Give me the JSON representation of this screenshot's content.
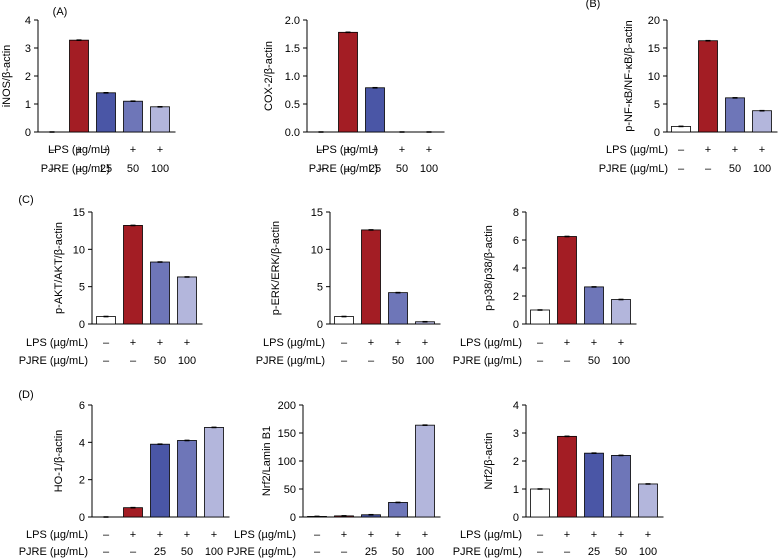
{
  "colors": {
    "control": "#ffffff",
    "lps": "#a31d24",
    "pjre_25": "#4a56a6",
    "pjre_50": "#6e76b8",
    "pjre_100": "#b3b6dc",
    "axis": "#000000"
  },
  "row_labels": {
    "lps": "LPS (µg/mL)",
    "pjre": "PJRE (µg/mL)"
  },
  "condition_marks": {
    "control": {
      "lps": "–",
      "pjre": "–"
    },
    "lps": {
      "lps": "+",
      "pjre": "–"
    },
    "pjre_25": {
      "lps": "+",
      "pjre": "25"
    },
    "pjre_50": {
      "lps": "+",
      "pjre": "50"
    },
    "pjre_100": {
      "lps": "+",
      "pjre": "100"
    }
  },
  "panel_letters": [
    "(A)",
    "(B)",
    "(C)",
    "(D)"
  ],
  "chart_data": [
    {
      "type": "bar",
      "panel": "(A)",
      "ylabel": "iNOS/β-actin",
      "ylim": [
        0,
        4
      ],
      "yticks": [
        0,
        1,
        2,
        3,
        4
      ],
      "conditions": [
        "control",
        "lps",
        "pjre_25",
        "pjre_50",
        "pjre_100"
      ],
      "values": [
        0.0,
        3.28,
        1.4,
        1.1,
        0.9
      ]
    },
    {
      "type": "bar",
      "panel": "",
      "ylabel": "COX-2/β-actin",
      "ylim": [
        0,
        2.0
      ],
      "yticks": [
        0.0,
        0.5,
        1.0,
        1.5,
        2.0
      ],
      "conditions": [
        "control",
        "lps",
        "pjre_25",
        "pjre_50",
        "pjre_100"
      ],
      "values": [
        0.0,
        1.78,
        0.79,
        0.0,
        0.0
      ]
    },
    {
      "type": "bar",
      "panel": "(B)",
      "ylabel": "p-NF-κB/NF-κB/β-actin",
      "ylim": [
        0,
        20
      ],
      "yticks": [
        0,
        5,
        10,
        15,
        20
      ],
      "conditions": [
        "control",
        "lps",
        "pjre_50",
        "pjre_100"
      ],
      "values": [
        1.0,
        16.3,
        6.1,
        3.8
      ]
    },
    {
      "type": "bar",
      "panel": "(C)",
      "ylabel": "p-AKT/AKT/β-actin",
      "ylim": [
        0,
        15
      ],
      "yticks": [
        0,
        5,
        10,
        15
      ],
      "conditions": [
        "control",
        "lps",
        "pjre_50",
        "pjre_100"
      ],
      "values": [
        1.0,
        13.2,
        8.3,
        6.3
      ]
    },
    {
      "type": "bar",
      "panel": "",
      "ylabel": "p-ERK/ERK/β-actin",
      "ylim": [
        0,
        15
      ],
      "yticks": [
        0,
        5,
        10,
        15
      ],
      "conditions": [
        "control",
        "lps",
        "pjre_50",
        "pjre_100"
      ],
      "values": [
        1.0,
        12.6,
        4.2,
        0.3
      ]
    },
    {
      "type": "bar",
      "panel": "",
      "ylabel": "p-p38/p38/β-actin",
      "ylim": [
        0,
        8
      ],
      "yticks": [
        0,
        2,
        4,
        6,
        8
      ],
      "conditions": [
        "control",
        "lps",
        "pjre_50",
        "pjre_100"
      ],
      "values": [
        1.0,
        6.25,
        2.65,
        1.75
      ]
    },
    {
      "type": "bar",
      "panel": "(D)",
      "ylabel": "HO-1/β-actin",
      "ylim": [
        0,
        6
      ],
      "yticks": [
        0,
        2,
        4,
        6
      ],
      "conditions": [
        "control",
        "lps",
        "pjre_25",
        "pjre_50",
        "pjre_100"
      ],
      "values": [
        0.0,
        0.5,
        3.9,
        4.1,
        4.8
      ]
    },
    {
      "type": "bar",
      "panel": "",
      "ylabel": "Nrf2/Lamin B1",
      "ylim": [
        0,
        200
      ],
      "yticks": [
        0,
        50,
        100,
        150,
        200
      ],
      "conditions": [
        "control",
        "lps",
        "pjre_25",
        "pjre_50",
        "pjre_100"
      ],
      "values": [
        1.0,
        2.0,
        4.0,
        26.0,
        164.0
      ]
    },
    {
      "type": "bar",
      "panel": "",
      "ylabel": "Nrf2/β-actin",
      "ylim": [
        0,
        4
      ],
      "yticks": [
        0,
        1,
        2,
        3,
        4
      ],
      "conditions": [
        "control",
        "lps",
        "pjre_25",
        "pjre_50",
        "pjre_100"
      ],
      "values": [
        1.0,
        2.88,
        2.28,
        2.2,
        1.18
      ]
    }
  ]
}
